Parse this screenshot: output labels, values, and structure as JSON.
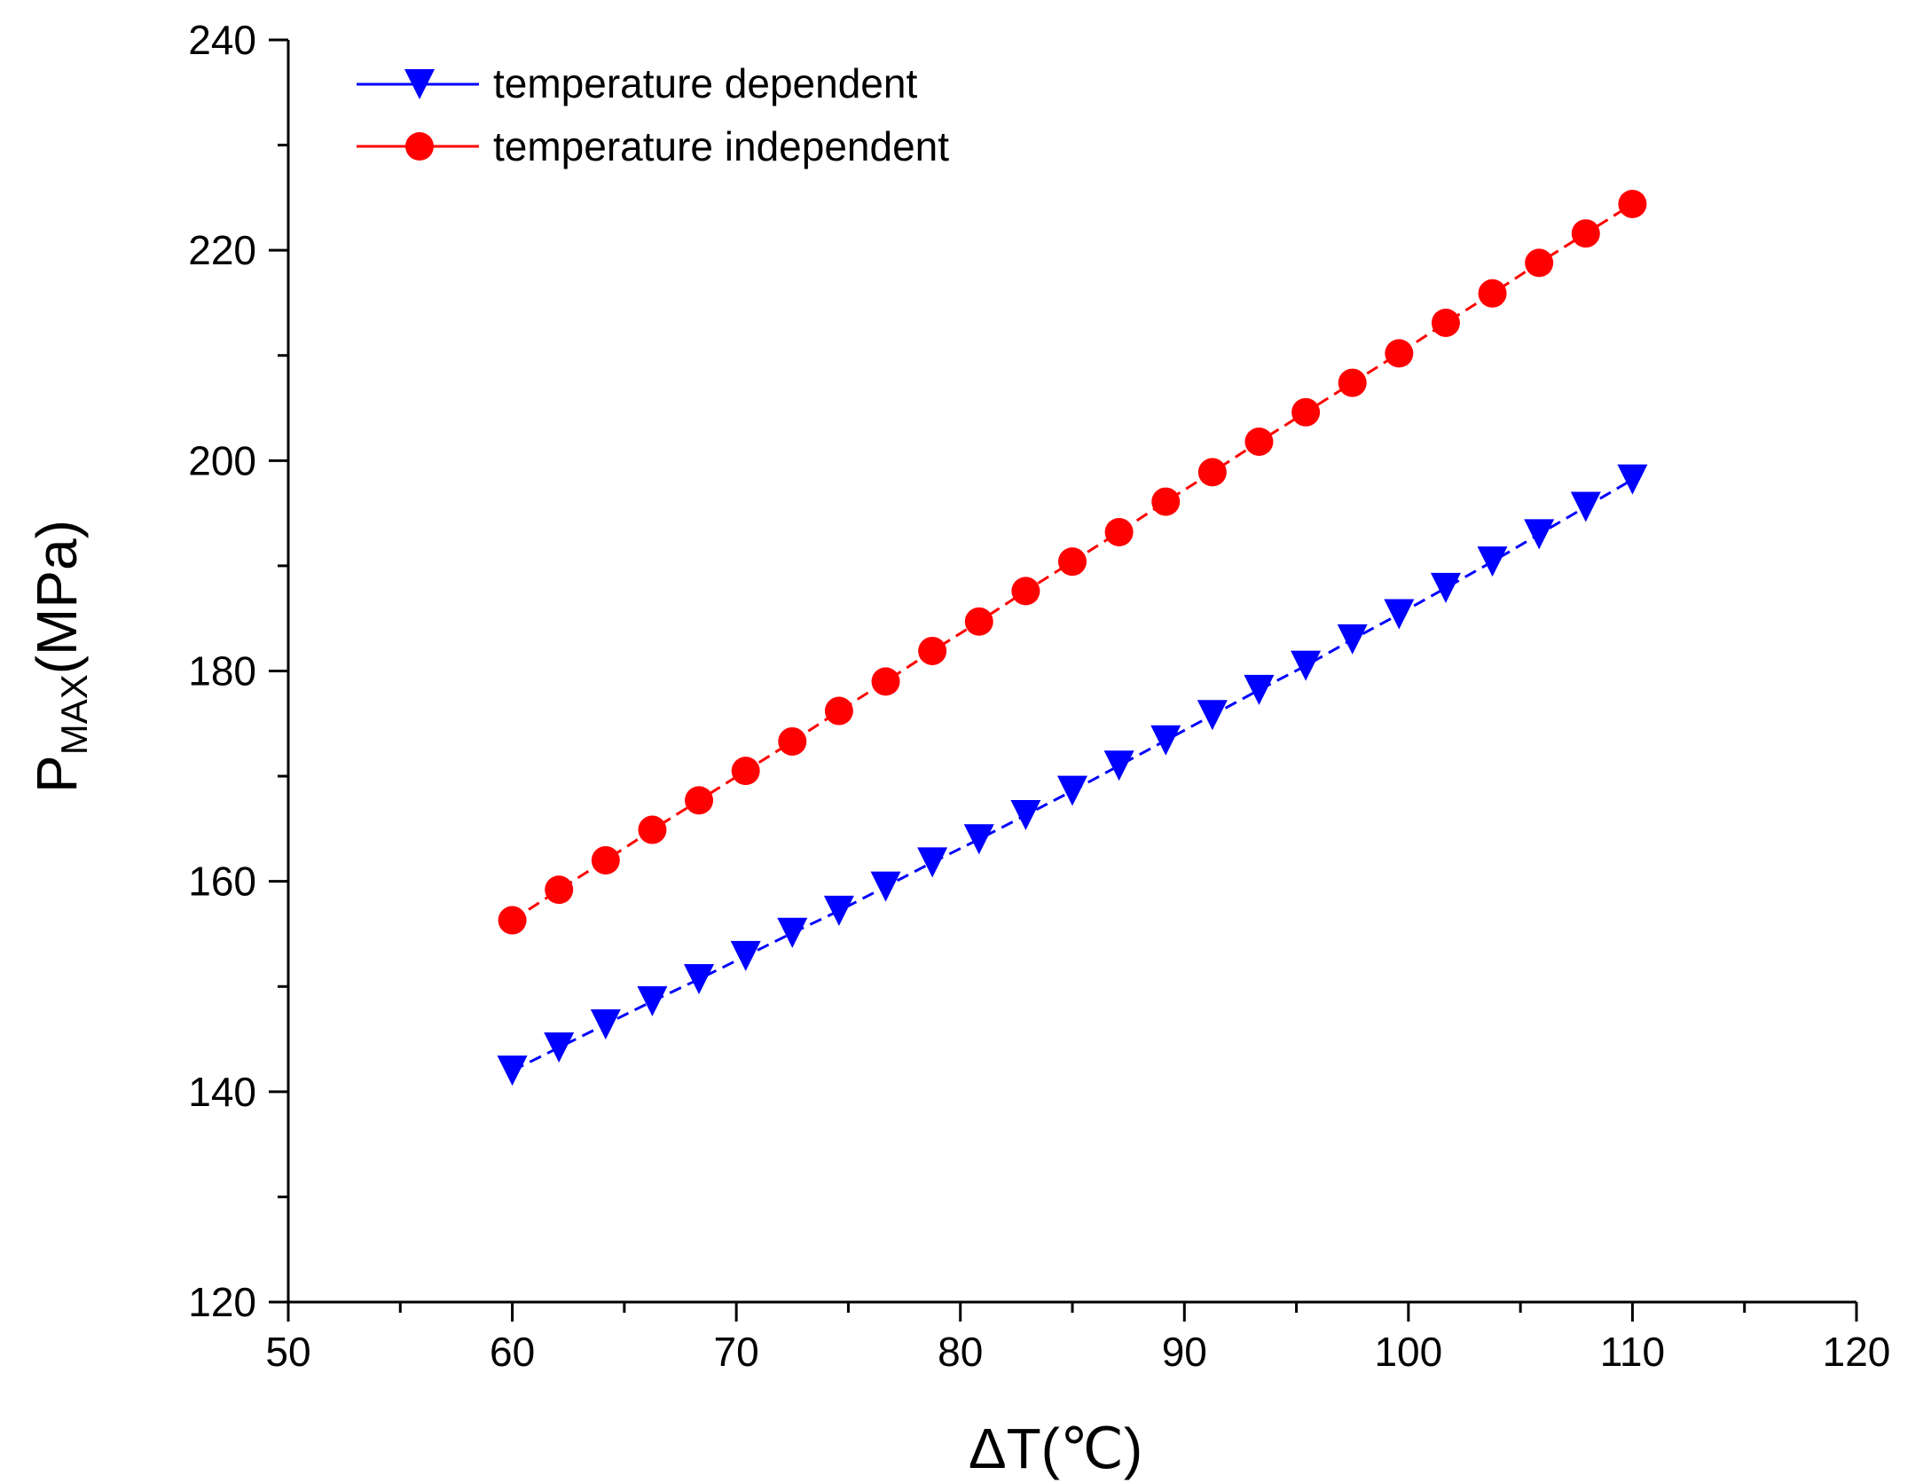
{
  "chart_data": {
    "type": "line",
    "title": "",
    "xlabel": "ΔT(℃)",
    "ylabel_main": "P",
    "ylabel_sub": "MAX",
    "ylabel_unit": "(MPa)",
    "xlim": [
      50,
      120
    ],
    "ylim": [
      120,
      240
    ],
    "x_major_ticks": [
      50,
      60,
      70,
      80,
      90,
      100,
      110,
      120
    ],
    "y_major_ticks": [
      120,
      140,
      160,
      180,
      200,
      220,
      240
    ],
    "x_minor_step": 5,
    "y_minor_step": 10,
    "grid": false,
    "legend_position": "top-left",
    "x": [
      60,
      62.083,
      64.167,
      66.25,
      68.333,
      70.417,
      72.5,
      74.583,
      76.667,
      78.75,
      80.833,
      82.917,
      85,
      87.083,
      89.167,
      91.25,
      93.333,
      95.417,
      97.5,
      99.583,
      101.667,
      103.75,
      105.833,
      107.917,
      110
    ],
    "series": [
      {
        "name": "temperature dependent",
        "color": "#0000FF",
        "marker": "triangle-down",
        "line_style": "dashed",
        "values": [
          142.0,
          144.2,
          146.4,
          148.6,
          150.7,
          152.9,
          155.1,
          157.2,
          159.5,
          161.8,
          164.0,
          166.3,
          168.6,
          171.0,
          173.4,
          175.8,
          178.2,
          180.5,
          183.0,
          185.4,
          187.9,
          190.4,
          193.0,
          195.6,
          198.2
        ]
      },
      {
        "name": "temperature independent",
        "color": "#FF0000",
        "marker": "circle",
        "line_style": "dashed",
        "values": [
          156.3,
          159.2,
          162.0,
          164.9,
          167.7,
          170.5,
          173.3,
          176.2,
          179.0,
          181.9,
          184.7,
          187.6,
          190.4,
          193.2,
          196.1,
          198.9,
          201.8,
          204.6,
          207.4,
          210.2,
          213.1,
          215.9,
          218.8,
          221.6,
          224.4
        ]
      }
    ]
  }
}
